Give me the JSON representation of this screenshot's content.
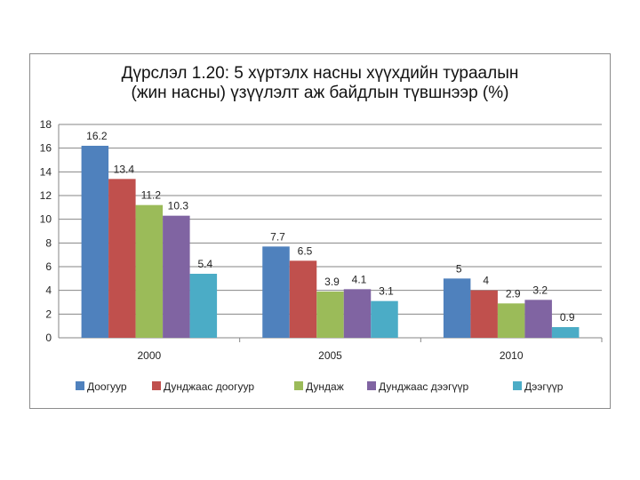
{
  "chart_data": {
    "type": "bar",
    "title_line1": "Дүрслэл 1.20: 5 хүртэлх насны хүүхдийн тураалын",
    "title_line2": "(жин насны) үзүүлэлт аж байдлын түвшнээр (%)",
    "categories": [
      "2000",
      "2005",
      "2010"
    ],
    "ylim": [
      0,
      18
    ],
    "yticks": [
      "0",
      "2",
      "4",
      "6",
      "8",
      "10",
      "12",
      "14",
      "16",
      "18"
    ],
    "grid": true,
    "legend_position": "bottom",
    "series": [
      {
        "name": "Доогуур",
        "color": "#4f81bd",
        "values": [
          16.2,
          7.7,
          5
        ],
        "labels": [
          "16.2",
          "7.7",
          "5"
        ]
      },
      {
        "name": "Дунджаас доогуур",
        "color": "#c0504d",
        "values": [
          13.4,
          6.5,
          4
        ],
        "labels": [
          "13.4",
          "6.5",
          "4"
        ]
      },
      {
        "name": "Дундаж",
        "color": "#9bbb59",
        "values": [
          11.2,
          3.9,
          2.9
        ],
        "labels": [
          "11.2",
          "3.9",
          "2.9"
        ]
      },
      {
        "name": "Дунджаас дээгүүр",
        "color": "#8064a2",
        "values": [
          10.3,
          4.1,
          3.2
        ],
        "labels": [
          "10.3",
          "4.1",
          "3.2"
        ]
      },
      {
        "name": "Дээгүүр",
        "color": "#4bacc6",
        "values": [
          5.4,
          3.1,
          0.9
        ],
        "labels": [
          "5.4",
          "3.1",
          "0.9"
        ]
      }
    ]
  }
}
